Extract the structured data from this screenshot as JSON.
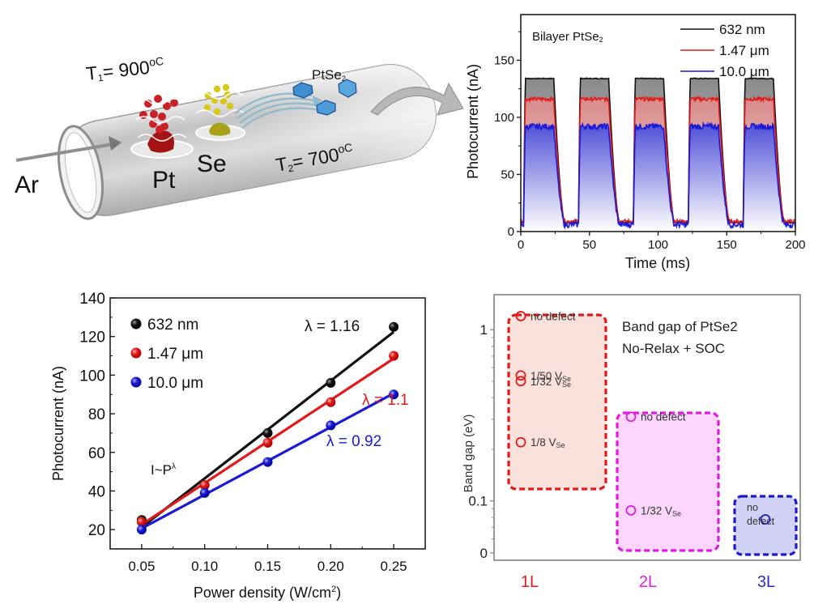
{
  "figure": {
    "diagram": {
      "carrier_gas": "Ar",
      "t1_label": "T",
      "t1_sub": "1",
      "t1_value": "= 900",
      "t1_unit": "oC",
      "t2_label": "T",
      "t2_sub": "2",
      "t2_value": "= 700",
      "t2_unit": "oC",
      "source_1": "Pt",
      "source_2": "Se",
      "product": "PtSe",
      "product_sub": "2",
      "colors": {
        "pt": "#b01c1c",
        "se": "#c9b419",
        "ptse2": "#3f8fd0",
        "tube": "#c8c8c8"
      }
    }
  },
  "chart_data": [
    {
      "id": "photocurrent_time",
      "type": "area",
      "title": "",
      "annotation": "Bilayer PtSe",
      "annotation_sub": "2",
      "xlabel": "Time (ms)",
      "ylabel": "Photocurrent (nA)",
      "xlim": [
        0,
        200
      ],
      "ylim": [
        0,
        190
      ],
      "xticks": [
        0,
        50,
        100,
        150,
        200
      ],
      "yticks": [
        0,
        50,
        100,
        150
      ],
      "grid": false,
      "legend_position": "top-right",
      "pulse_on_intervals_ms": [
        [
          2,
          24
        ],
        [
          42,
          64
        ],
        [
          82,
          104
        ],
        [
          122,
          144
        ],
        [
          162,
          184
        ]
      ],
      "baseline_nA": 8,
      "series": [
        {
          "name": "632 nm",
          "color": "#111111",
          "on_level_nA": 134
        },
        {
          "name": "1.47 μm",
          "color": "#e01b1b",
          "on_level_nA": 116
        },
        {
          "name": "10.0 μm",
          "color": "#1a1ad6",
          "on_level_nA": 92
        }
      ]
    },
    {
      "id": "photocurrent_power",
      "type": "line",
      "title": "",
      "xlabel": "Power density (W/cm",
      "xlabel_sup": "2",
      "xlabel_tail": ")",
      "ylabel": "Photocurrent (nA)",
      "xlim": [
        0.025,
        0.275
      ],
      "ylim": [
        10,
        140
      ],
      "xticks": [
        "0.05",
        "0.10",
        "0.15",
        "0.20",
        "0.25"
      ],
      "yticks": [
        20,
        40,
        60,
        80,
        100,
        120,
        140
      ],
      "grid": false,
      "legend_position": "top-left",
      "x": [
        0.05,
        0.1,
        0.15,
        0.2,
        0.25
      ],
      "annotation": "I~P",
      "annotation_sup": "λ",
      "series": [
        {
          "name": "632 nm",
          "color": "#111111",
          "values": [
            25,
            43,
            70,
            96,
            125
          ],
          "fit_label": "λ = 1.16"
        },
        {
          "name": "1.47 μm",
          "color": "#e01b1b",
          "values": [
            24,
            43,
            65,
            86,
            110
          ],
          "fit_label": "λ = 1.1"
        },
        {
          "name": "10.0 μm",
          "color": "#1a1ad6",
          "values": [
            20,
            39,
            55,
            74,
            90
          ],
          "fit_label": "λ = 0.92"
        }
      ]
    },
    {
      "id": "band_gap",
      "type": "scatter",
      "title": "Band gap of PtSe2",
      "subtitle": "No-Relax + SOC",
      "xlabel": "",
      "ylabel": "Band gap (eV)",
      "yscale": "log",
      "ylim": [
        0.045,
        1.6
      ],
      "yticks": [
        "0",
        "0.1",
        "1"
      ],
      "categories": [
        "1L",
        "2L",
        "3L"
      ],
      "category_colors": [
        "#e01b1b",
        "#e01be0",
        "#2a2ad0"
      ],
      "grid": false,
      "groups": [
        {
          "category": "1L",
          "color": "#e01b1b",
          "fill": "#fbe1dc",
          "points": [
            {
              "label": "no defect",
              "value": 1.2
            },
            {
              "label": "1/50 V",
              "label_sub": "Se",
              "value": 0.54
            },
            {
              "label": "1/32 V",
              "label_sub": "Se",
              "value": 0.5
            },
            {
              "label": "1/8 V",
              "label_sub": "Se",
              "value": 0.22
            }
          ]
        },
        {
          "category": "2L",
          "color": "#e01be0",
          "fill": "#fcd6fc",
          "points": [
            {
              "label": "no defect",
              "value": 0.31
            },
            {
              "label": "1/32 V",
              "label_sub": "Se",
              "value": 0.088
            }
          ]
        },
        {
          "category": "3L",
          "color": "#1a1ad6",
          "fill": "#d2d2f6",
          "points": [
            {
              "label": "no defect",
              "value": 0.078
            }
          ]
        }
      ]
    }
  ]
}
